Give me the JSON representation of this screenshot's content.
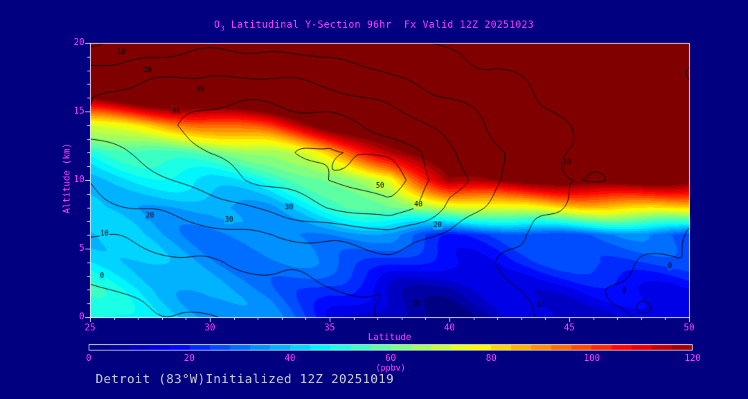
{
  "title": {
    "prefix": "O",
    "sub": "3",
    "rest": " Latitudinal Y-Section 96hr  Fx Valid 12Z 20251023"
  },
  "footer": {
    "text": "Detroit (83°W)Initialized 12Z 20251019"
  },
  "colors": {
    "background": "#000080",
    "accent": "#ff3cff",
    "frame": "#ffffff",
    "footer_text": "#c8c8c8",
    "contour_line": "#000000"
  },
  "axes": {
    "x": {
      "label": "Latitude",
      "min": 25,
      "max": 50,
      "ticks": [
        25,
        30,
        35,
        40,
        45,
        50
      ],
      "minor_step": 1
    },
    "y": {
      "label": "Altitude (km)",
      "min": 0,
      "max": 20,
      "ticks": [
        0,
        5,
        10,
        15,
        20
      ],
      "minor_step": 1
    }
  },
  "colorbar": {
    "label": "(ppbv)",
    "min": 0,
    "max": 120,
    "ticks": [
      0,
      20,
      40,
      60,
      80,
      100,
      120
    ]
  },
  "chart_data": {
    "type": "heatmap",
    "title": "O3 Latitudinal Y-Section 96hr Fx Valid 12Z 20251023",
    "xlabel": "Latitude",
    "ylabel": "Altitude (km)",
    "units": "ppbv",
    "xlim": [
      25,
      50
    ],
    "ylim": [
      0,
      20
    ],
    "vlim": [
      0,
      120
    ],
    "x": [
      25,
      27.5,
      30,
      32.5,
      35,
      37.5,
      40,
      42.5,
      45,
      47.5,
      50
    ],
    "y": [
      0,
      2,
      4,
      6,
      8,
      10,
      12,
      14,
      16,
      18,
      20
    ],
    "fill_grid": [
      [
        50,
        45,
        40,
        30,
        15,
        8,
        6,
        10,
        8,
        12,
        18
      ],
      [
        48,
        44,
        38,
        30,
        18,
        12,
        10,
        14,
        12,
        16,
        20
      ],
      [
        42,
        40,
        36,
        32,
        26,
        22,
        18,
        22,
        22,
        24,
        26
      ],
      [
        38,
        36,
        35,
        34,
        32,
        30,
        24,
        26,
        26,
        28,
        30
      ],
      [
        36,
        36,
        36,
        40,
        48,
        60,
        70,
        80,
        80,
        80,
        82
      ],
      [
        40,
        42,
        45,
        52,
        62,
        70,
        120,
        126,
        128,
        126,
        122
      ],
      [
        48,
        52,
        58,
        68,
        85,
        112,
        138,
        142,
        142,
        142,
        140
      ],
      [
        72,
        82,
        92,
        105,
        128,
        140,
        148,
        152,
        152,
        152,
        150
      ],
      [
        126,
        132,
        138,
        142,
        150,
        155,
        158,
        160,
        160,
        160,
        158
      ],
      [
        150,
        153,
        156,
        158,
        162,
        164,
        166,
        166,
        166,
        166,
        164
      ],
      [
        162,
        164,
        166,
        168,
        170,
        170,
        170,
        170,
        170,
        170,
        168
      ]
    ],
    "line_contour_levels": [
      -10,
      0,
      10,
      20,
      30,
      40,
      50
    ],
    "line_grid": [
      [
        -5,
        -2,
        0,
        3,
        6,
        10,
        13,
        12,
        6,
        0,
        -3
      ],
      [
        -1,
        2,
        5,
        7,
        9,
        12,
        13,
        12,
        5,
        -1,
        -4
      ],
      [
        4,
        7,
        10,
        12,
        14,
        16,
        13,
        9,
        4,
        1,
        -1
      ],
      [
        10,
        13,
        17,
        20,
        23,
        26,
        18,
        10,
        6,
        3,
        1
      ],
      [
        17,
        21,
        26,
        32,
        40,
        48,
        28,
        14,
        8,
        5,
        2
      ],
      [
        21,
        27,
        34,
        42,
        50,
        56,
        34,
        18,
        11,
        7,
        3
      ],
      [
        27,
        33,
        40,
        46,
        52,
        48,
        32,
        18,
        10,
        6,
        3
      ],
      [
        32,
        38,
        44,
        48,
        44,
        36,
        26,
        15,
        9,
        5,
        2
      ],
      [
        30,
        36,
        38,
        38,
        34,
        27,
        20,
        12,
        7,
        4,
        2
      ],
      [
        22,
        26,
        28,
        27,
        24,
        19,
        14,
        9,
        5,
        3,
        1
      ],
      [
        8,
        14,
        17,
        17,
        15,
        12,
        9,
        6,
        3,
        2,
        1
      ]
    ],
    "contour_labels": [
      {
        "v": 10,
        "lat": 26.3,
        "alt": 19.3
      },
      {
        "v": 20,
        "lat": 27.4,
        "alt": 18.0
      },
      {
        "v": 30,
        "lat": 29.6,
        "alt": 16.6
      },
      {
        "v": 40,
        "lat": 28.6,
        "alt": 15.1
      },
      {
        "v": 30,
        "lat": 30.8,
        "alt": 7.1
      },
      {
        "v": 20,
        "lat": 27.5,
        "alt": 7.4
      },
      {
        "v": 10,
        "lat": 25.6,
        "alt": 6.1
      },
      {
        "v": 0,
        "lat": 25.5,
        "alt": 3.0
      },
      {
        "v": 50,
        "lat": 37.1,
        "alt": 9.6
      },
      {
        "v": 40,
        "lat": 38.7,
        "alt": 8.2
      },
      {
        "v": 30,
        "lat": 33.3,
        "alt": 8.0
      },
      {
        "v": 20,
        "lat": 39.5,
        "alt": 6.7
      },
      {
        "v": 10,
        "lat": 38.6,
        "alt": 1.0
      },
      {
        "v": 10,
        "lat": 43.8,
        "alt": 0.9
      },
      {
        "v": 0,
        "lat": 47.3,
        "alt": 1.9
      },
      {
        "v": 0,
        "lat": 49.2,
        "alt": 3.7
      },
      {
        "v": 10,
        "lat": 44.9,
        "alt": 11.3
      }
    ],
    "colormap": [
      [
        0,
        "#000083"
      ],
      [
        0.125,
        "#0000ff"
      ],
      [
        0.375,
        "#00ffff"
      ],
      [
        0.625,
        "#ffff00"
      ],
      [
        0.875,
        "#ff0000"
      ],
      [
        1,
        "#800000"
      ]
    ]
  }
}
